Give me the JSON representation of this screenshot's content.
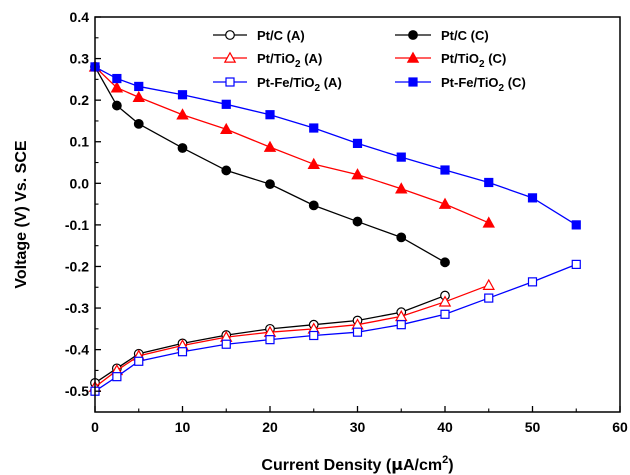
{
  "chart_data": {
    "type": "line",
    "xlabel": "Current Density (μA/cm²)",
    "xlabel_parts": {
      "main": "Current Density (",
      "mu": "μ",
      "unit": "A/cm",
      "sup": "2",
      "close": ")"
    },
    "ylabel": "Voltage (V) Vs. SCE",
    "xlim": [
      0,
      60
    ],
    "ylim": [
      -0.55,
      0.4
    ],
    "xticks": [
      "0",
      "10",
      "20",
      "30",
      "40",
      "50",
      "60"
    ],
    "yticks": [
      "-0.5",
      "-0.4",
      "-0.3",
      "-0.2",
      "-0.1",
      "0.0",
      "0.1",
      "0.2",
      "0.3",
      "0.4"
    ],
    "grid": false,
    "legend_position": "top-right",
    "series": [
      {
        "name": "Pt/C (A)",
        "name_parts": {
          "main": "Pt/C (A)",
          "sub": "",
          "tail": ""
        },
        "color": "#000000",
        "marker": "circle",
        "filled": false,
        "x": [
          0,
          2.5,
          5,
          10,
          15,
          20,
          25,
          30,
          35,
          40
        ],
        "y": [
          -0.48,
          -0.445,
          -0.41,
          -0.385,
          -0.365,
          -0.35,
          -0.34,
          -0.33,
          -0.31,
          -0.27
        ]
      },
      {
        "name": "Pt/C (C)",
        "name_parts": {
          "main": "Pt/C (C)",
          "sub": "",
          "tail": ""
        },
        "color": "#000000",
        "marker": "circle",
        "filled": true,
        "x": [
          0,
          2.5,
          5,
          10,
          15,
          20,
          25,
          30,
          35,
          40
        ],
        "y": [
          0.28,
          0.187,
          0.143,
          0.085,
          0.031,
          -0.002,
          -0.053,
          -0.092,
          -0.13,
          -0.19
        ]
      },
      {
        "name": "Pt/TiO2 (A)",
        "name_parts": {
          "main": "Pt/TiO",
          "sub": "2",
          "tail": " (A)"
        },
        "color": "#ff0000",
        "marker": "triangle",
        "filled": false,
        "x": [
          0,
          2.5,
          5,
          10,
          15,
          20,
          25,
          30,
          35,
          40,
          45
        ],
        "y": [
          -0.49,
          -0.45,
          -0.415,
          -0.39,
          -0.37,
          -0.358,
          -0.35,
          -0.34,
          -0.32,
          -0.285,
          -0.245
        ]
      },
      {
        "name": "Pt/TiO2 (C)",
        "name_parts": {
          "main": "Pt/TiO",
          "sub": "2",
          "tail": " (C)"
        },
        "color": "#ff0000",
        "marker": "triangle",
        "filled": true,
        "x": [
          0,
          2.5,
          5,
          10,
          15,
          20,
          25,
          30,
          35,
          40,
          45
        ],
        "y": [
          0.28,
          0.23,
          0.207,
          0.165,
          0.13,
          0.087,
          0.046,
          0.021,
          -0.013,
          -0.05,
          -0.095
        ]
      },
      {
        "name": "Pt-Fe/TiO2 (A)",
        "name_parts": {
          "main": "Pt-Fe/TiO",
          "sub": "2",
          "tail": " (A)"
        },
        "color": "#0000ff",
        "marker": "square",
        "filled": false,
        "x": [
          0,
          2.5,
          5,
          10,
          15,
          20,
          25,
          30,
          35,
          40,
          45,
          50,
          55
        ],
        "y": [
          -0.5,
          -0.465,
          -0.428,
          -0.405,
          -0.387,
          -0.376,
          -0.366,
          -0.358,
          -0.34,
          -0.315,
          -0.276,
          -0.237,
          -0.195
        ]
      },
      {
        "name": "Pt-Fe/TiO2 (C)",
        "name_parts": {
          "main": "Pt-Fe/TiO",
          "sub": "2",
          "tail": " (C)"
        },
        "color": "#0000ff",
        "marker": "square",
        "filled": true,
        "x": [
          0,
          2.5,
          5,
          10,
          15,
          20,
          25,
          30,
          35,
          40,
          45,
          50,
          55
        ],
        "y": [
          0.28,
          0.252,
          0.233,
          0.213,
          0.19,
          0.165,
          0.133,
          0.096,
          0.063,
          0.032,
          0.002,
          -0.035,
          -0.1
        ]
      }
    ]
  }
}
